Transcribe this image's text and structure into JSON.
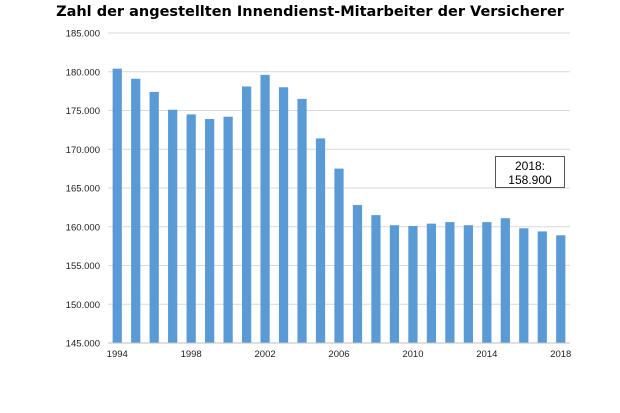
{
  "chart_data": {
    "type": "bar",
    "title": "Zahl der angestellten Innendienst-Mitarbeiter der Versicherer",
    "xlabel": "",
    "ylabel": "",
    "ylim": [
      145000,
      185000
    ],
    "y_ticks": [
      145000,
      150000,
      155000,
      160000,
      165000,
      170000,
      175000,
      180000,
      185000
    ],
    "y_tick_labels": [
      "145.000",
      "150.000",
      "155.000",
      "160.000",
      "165.000",
      "170.000",
      "175.000",
      "180.000",
      "185.000"
    ],
    "categories": [
      1994,
      1995,
      1996,
      1997,
      1998,
      1999,
      2000,
      2001,
      2002,
      2003,
      2004,
      2005,
      2006,
      2007,
      2008,
      2009,
      2010,
      2011,
      2012,
      2013,
      2014,
      2015,
      2016,
      2017,
      2018
    ],
    "x_tick_labels": [
      "1994",
      "1998",
      "2002",
      "2006",
      "2010",
      "2014",
      "2018"
    ],
    "values": [
      180400,
      179100,
      177400,
      175100,
      174500,
      173900,
      174200,
      178100,
      179600,
      178000,
      176500,
      171400,
      167500,
      162800,
      161500,
      160200,
      160100,
      160400,
      160600,
      160200,
      160600,
      161100,
      159800,
      159400,
      158900
    ],
    "bar_color": "#5b9bd5",
    "grid": true,
    "annotation": {
      "line1": "2018:",
      "line2": "158.900"
    }
  }
}
